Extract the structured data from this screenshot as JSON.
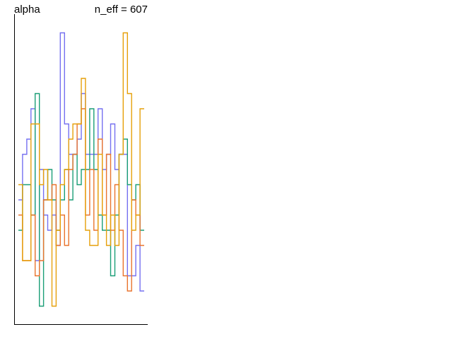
{
  "chart_data": {
    "type": "line",
    "title": "alpha",
    "annotation": "n_eff = 607",
    "xlabel": "",
    "ylabel": "",
    "grid": false,
    "ylim": [
      0,
      20
    ],
    "x": [
      1,
      2,
      3,
      4,
      5,
      6,
      7,
      8,
      9,
      10,
      11,
      12,
      13,
      14,
      15,
      16,
      17,
      18,
      19,
      20,
      21,
      22,
      23,
      24,
      25,
      26,
      27,
      28,
      29,
      30
    ],
    "series": [
      {
        "color": "#7570f0",
        "values": [
          8,
          11,
          12,
          14,
          4,
          10,
          7,
          6,
          7,
          5,
          19,
          13,
          11,
          11,
          12,
          15,
          11,
          11,
          11,
          14,
          10,
          11,
          13,
          10,
          11,
          11,
          3,
          3,
          5,
          2
        ]
      },
      {
        "color": "#1b9e77",
        "values": [
          6,
          9,
          9,
          7,
          15,
          1,
          8,
          10,
          8,
          6,
          8,
          10,
          8,
          11,
          9,
          10,
          10,
          14,
          10,
          7,
          6,
          6,
          3,
          7,
          11,
          12,
          9,
          8,
          9,
          6
        ]
      },
      {
        "color": "#e9742e",
        "values": [
          7,
          4,
          4,
          7,
          3,
          4,
          8,
          8,
          9,
          5,
          7,
          5,
          10,
          11,
          13,
          14,
          7,
          10,
          6,
          12,
          7,
          11,
          6,
          9,
          6,
          3,
          2,
          8,
          7,
          5
        ]
      },
      {
        "color": "#e6a00a",
        "values": [
          9,
          4,
          4,
          13,
          13,
          9,
          10,
          8,
          1,
          6,
          9,
          10,
          12,
          13,
          13,
          16,
          6,
          5,
          5,
          11,
          7,
          5,
          7,
          5,
          11,
          19,
          15,
          6,
          7,
          14
        ]
      }
    ]
  }
}
